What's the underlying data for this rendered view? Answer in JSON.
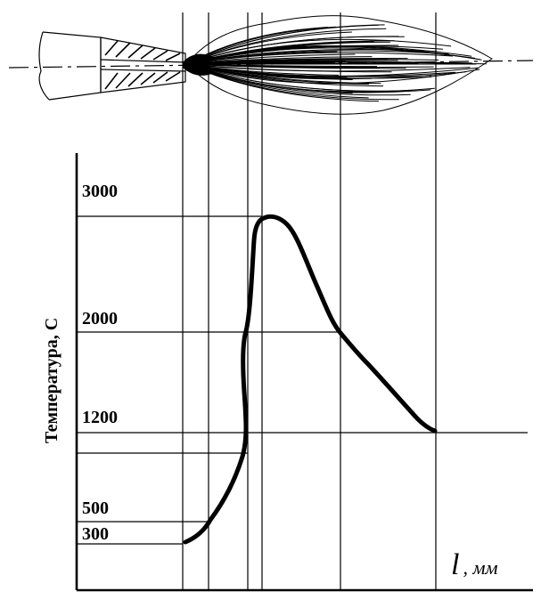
{
  "diagram": {
    "y_axis_label": "Температура, С",
    "x_axis_label": "l",
    "x_axis_unit": ", мм",
    "y_ticks": [
      "3000",
      "2000",
      "1200",
      "500",
      "300"
    ]
  },
  "chart_data": {
    "type": "line",
    "xlabel": "l, мм",
    "ylabel": "Температура, С",
    "y_reference_values": [
      300,
      500,
      1200,
      2000,
      3000
    ],
    "series": [
      {
        "values": [
          300,
          500,
          1200,
          2000,
          3000,
          2000,
          1200
        ]
      }
    ]
  }
}
